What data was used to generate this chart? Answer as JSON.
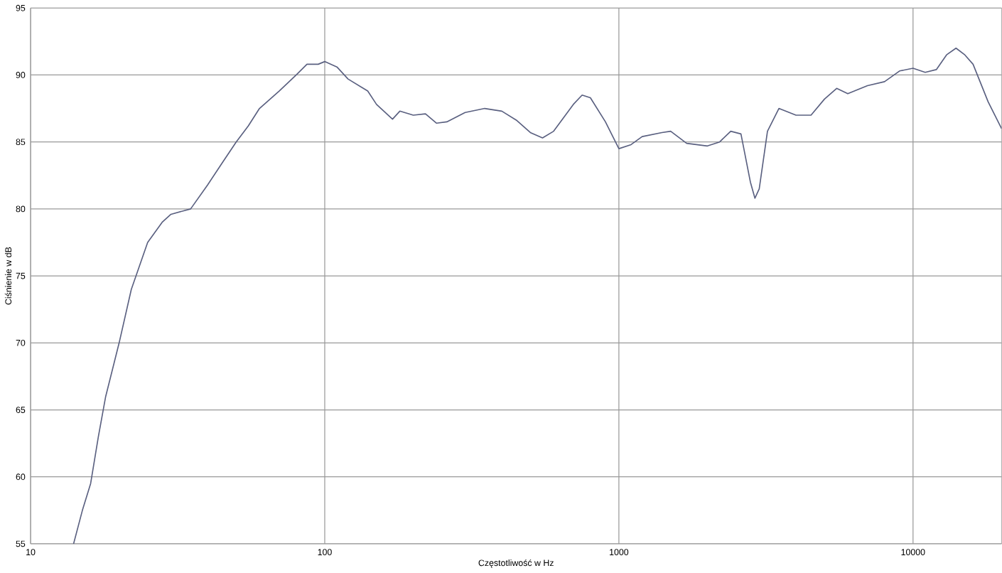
{
  "chart_data": {
    "type": "line",
    "xlabel": "Częstotliwość w Hz",
    "ylabel": "Ciśnienie w dB",
    "log": "x",
    "grid": true,
    "marker": "none",
    "line_style": "solid",
    "xlim": [
      10,
      20000
    ],
    "xticks": [
      10,
      100,
      1000,
      10000
    ],
    "ylim": [
      55,
      95
    ],
    "yticks": [
      55,
      60,
      65,
      70,
      75,
      80,
      85,
      90,
      95
    ],
    "series": [
      {
        "color": "#5a6080",
        "x": [
          14,
          15,
          16,
          17,
          18,
          20,
          22,
          25,
          28,
          30,
          35,
          40,
          45,
          50,
          55,
          60,
          70,
          80,
          87,
          95,
          100,
          110,
          120,
          140,
          150,
          170,
          180,
          200,
          220,
          240,
          260,
          300,
          350,
          400,
          450,
          500,
          550,
          600,
          700,
          750,
          800,
          900,
          1000,
          1100,
          1200,
          1400,
          1500,
          1700,
          2000,
          2200,
          2400,
          2600,
          2800,
          2900,
          3000,
          3200,
          3500,
          4000,
          4500,
          5000,
          5500,
          6000,
          7000,
          8000,
          9000,
          10000,
          11000,
          12000,
          13000,
          14000,
          15000,
          16000,
          18000,
          20000
        ],
        "values": [
          55,
          57.5,
          59.5,
          63,
          66,
          70,
          74,
          77.5,
          79,
          79.6,
          80,
          81.8,
          83.5,
          85,
          86.2,
          87.5,
          88.8,
          90,
          90.8,
          90.8,
          91,
          90.6,
          89.7,
          88.8,
          87.8,
          86.7,
          87.3,
          87,
          87.1,
          86.4,
          86.5,
          87.2,
          87.5,
          87.3,
          86.6,
          85.7,
          85.3,
          85.8,
          87.8,
          88.5,
          88.3,
          86.5,
          84.5,
          84.8,
          85.4,
          85.7,
          85.8,
          84.9,
          84.7,
          85,
          85.8,
          85.6,
          82,
          80.8,
          81.5,
          85.8,
          87.5,
          87,
          87,
          88.2,
          89,
          88.6,
          89.2,
          89.5,
          90.3,
          90.5,
          90.2,
          90.4,
          91.5,
          92,
          91.5,
          90.8,
          88,
          86
        ]
      }
    ]
  }
}
